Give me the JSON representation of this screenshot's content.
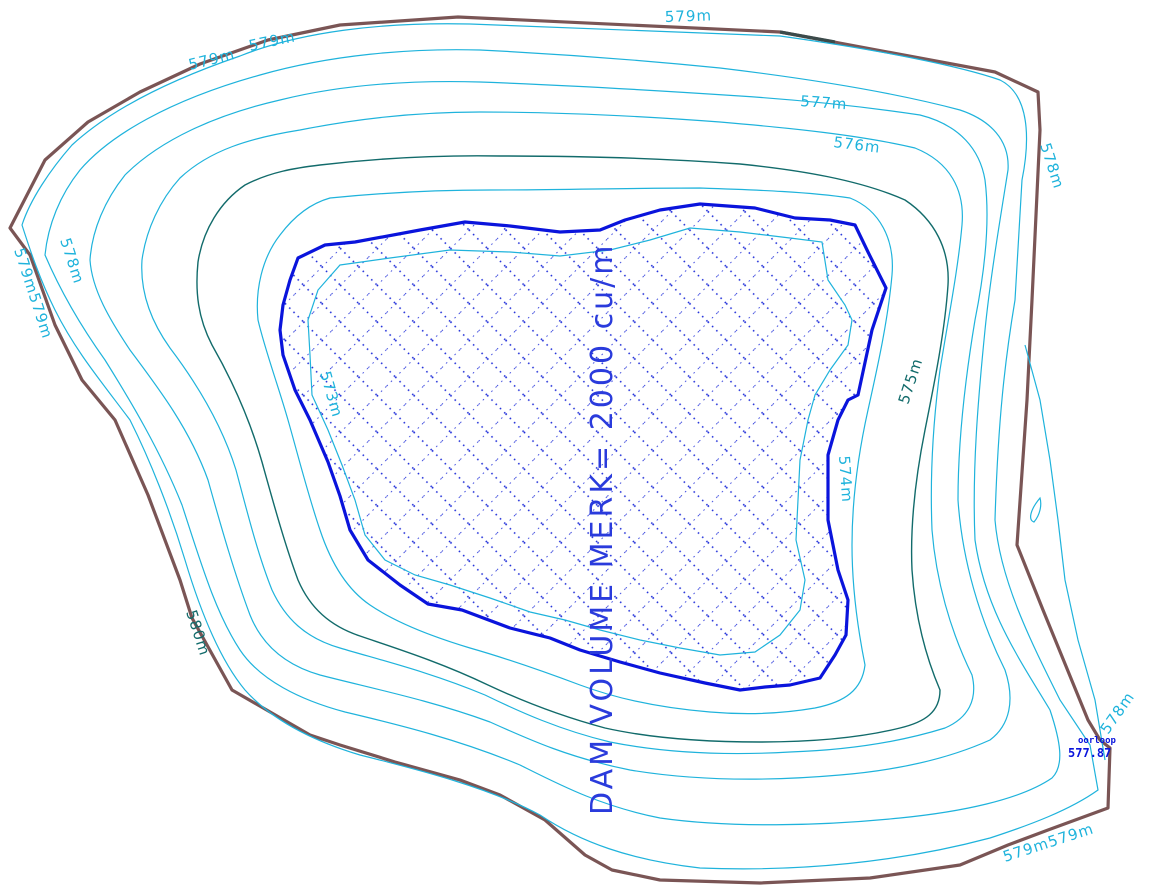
{
  "colors": {
    "boundary": "#7a5555",
    "dam_edge": "#0a14dc",
    "contour": "#1fb3dc",
    "contour_index": "#126b6b",
    "hatch": "#1b2ad8",
    "label": "#1fb3dc",
    "label_index": "#126b6b",
    "title": "#2a3bdc"
  },
  "title": "DAM VOLUME MERK= 2000 cu/m",
  "contour_labels": {
    "top_579": "579m",
    "top_left_579a": "579m",
    "top_left_579b": "579m",
    "c577": "577m",
    "c576": "576m",
    "right_578": "578m",
    "left_578": "578m",
    "left_579": "579m579m",
    "c575": "575m",
    "c574": "574m",
    "c573": "573m",
    "c580": "580m",
    "bottom_579": "579m579m",
    "outlet_578": "578m"
  },
  "outlet": {
    "label": "oorloop",
    "elevation": "577.87"
  }
}
